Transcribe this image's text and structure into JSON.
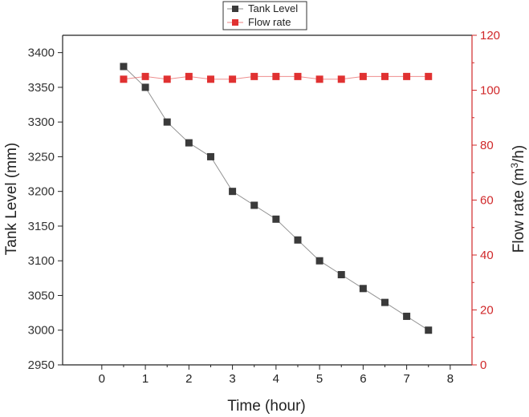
{
  "chart_data": {
    "type": "line",
    "xlabel": "Time (hour)",
    "xlim": [
      -0.9,
      8.5
    ],
    "x_ticks": [
      0,
      1,
      2,
      3,
      4,
      5,
      6,
      7,
      8
    ],
    "y_left": {
      "label": "Tank Level (mm)",
      "ylim": [
        2950,
        3425
      ],
      "ticks": [
        2950,
        3000,
        3050,
        3100,
        3150,
        3200,
        3250,
        3300,
        3350,
        3400
      ],
      "color": "#222222"
    },
    "y_right": {
      "label_main": "Flow rate (m",
      "label_sup": "3",
      "label_tail": "/h)",
      "ylim": [
        0,
        120
      ],
      "ticks": [
        0,
        20,
        40,
        60,
        80,
        100,
        120
      ],
      "color": "#d0282a"
    },
    "series": [
      {
        "name": "Tank Level",
        "axis": "left",
        "color": "#3a3a3a",
        "marker": "square",
        "x": [
          0.5,
          1,
          1.5,
          2,
          2.5,
          3,
          3.5,
          4,
          4.5,
          5,
          5.5,
          6,
          6.5,
          7,
          7.5
        ],
        "values": [
          3380,
          3350,
          3300,
          3270,
          3250,
          3200,
          3180,
          3160,
          3130,
          3100,
          3080,
          3060,
          3040,
          3020,
          3000
        ]
      },
      {
        "name": "Flow rate",
        "axis": "right",
        "color": "#e03131",
        "marker": "square",
        "x": [
          0.5,
          1,
          1.5,
          2,
          2.5,
          3,
          3.5,
          4,
          4.5,
          5,
          5.5,
          6,
          6.5,
          7,
          7.5
        ],
        "values": [
          104,
          105,
          104,
          105,
          104,
          104,
          105,
          105,
          105,
          104,
          104,
          105,
          105,
          105,
          105
        ]
      }
    ],
    "legend_position": "top-center",
    "grid": false
  }
}
